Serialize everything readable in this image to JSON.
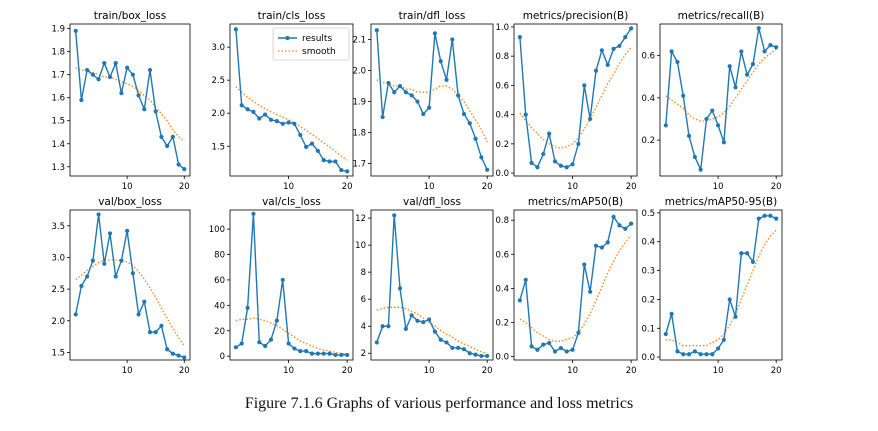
{
  "caption": "Figure 7.1.6 Graphs of various performance and loss metrics",
  "colors": {
    "results": "#1f77b4",
    "smooth": "#ff7f0e",
    "axis": "#000000",
    "background": "#ffffff"
  },
  "legend": {
    "results": "results",
    "smooth": "smooth",
    "placement": "top-right of second panel"
  },
  "chart_data": [
    {
      "type": "line",
      "title": "train/box_loss",
      "xlabel": "",
      "ylabel": "",
      "xlim": [
        0,
        21
      ],
      "ylim": [
        1.26,
        1.92
      ],
      "xticks": [
        10,
        20
      ],
      "yticks": [
        1.3,
        1.4,
        1.5,
        1.6,
        1.7,
        1.8,
        1.9
      ],
      "ytick_labels": [
        "1.3",
        "1.4",
        "1.5",
        "1.6",
        "1.7",
        "1.8",
        "1.9"
      ],
      "x": [
        1,
        2,
        3,
        4,
        5,
        6,
        7,
        8,
        9,
        10,
        11,
        12,
        13,
        14,
        15,
        16,
        17,
        18,
        19,
        20
      ],
      "series": [
        {
          "name": "results",
          "values": [
            1.89,
            1.59,
            1.72,
            1.7,
            1.68,
            1.75,
            1.69,
            1.75,
            1.62,
            1.73,
            1.7,
            1.61,
            1.55,
            1.72,
            1.54,
            1.43,
            1.39,
            1.43,
            1.31,
            1.29
          ]
        },
        {
          "name": "smooth",
          "values": [
            1.73,
            1.72,
            1.72,
            1.71,
            1.7,
            1.69,
            1.69,
            1.68,
            1.67,
            1.66,
            1.65,
            1.63,
            1.61,
            1.59,
            1.56,
            1.53,
            1.5,
            1.46,
            1.43,
            1.41
          ]
        }
      ],
      "legend": false
    },
    {
      "type": "line",
      "title": "train/cls_loss",
      "xlabel": "",
      "ylabel": "",
      "xlim": [
        0,
        21
      ],
      "ylim": [
        1.05,
        3.35
      ],
      "xticks": [
        10,
        20
      ],
      "yticks": [
        1.5,
        2.0,
        2.5,
        3.0
      ],
      "ytick_labels": [
        "1.5",
        "2.0",
        "2.5",
        "3.0"
      ],
      "x": [
        1,
        2,
        3,
        4,
        5,
        6,
        7,
        8,
        9,
        10,
        11,
        12,
        13,
        14,
        15,
        16,
        17,
        18,
        19,
        20
      ],
      "series": [
        {
          "name": "results",
          "values": [
            3.27,
            2.12,
            2.06,
            2.02,
            1.92,
            1.98,
            1.9,
            1.88,
            1.84,
            1.86,
            1.84,
            1.67,
            1.49,
            1.54,
            1.43,
            1.29,
            1.27,
            1.27,
            1.14,
            1.12
          ]
        },
        {
          "name": "smooth",
          "values": [
            2.4,
            2.32,
            2.24,
            2.18,
            2.12,
            2.07,
            2.02,
            1.98,
            1.94,
            1.9,
            1.85,
            1.8,
            1.74,
            1.68,
            1.62,
            1.55,
            1.49,
            1.42,
            1.35,
            1.29
          ]
        }
      ],
      "legend": true
    },
    {
      "type": "line",
      "title": "train/dfl_loss",
      "xlabel": "",
      "ylabel": "",
      "xlim": [
        0,
        21
      ],
      "ylim": [
        1.66,
        2.15
      ],
      "xticks": [
        10,
        20
      ],
      "yticks": [
        1.7,
        1.8,
        1.9,
        2.0,
        2.1
      ],
      "ytick_labels": [
        "1.7",
        "1.8",
        "1.9",
        "2.0",
        "2.1"
      ],
      "x": [
        1,
        2,
        3,
        4,
        5,
        6,
        7,
        8,
        9,
        10,
        11,
        12,
        13,
        14,
        15,
        16,
        17,
        18,
        19,
        20
      ],
      "series": [
        {
          "name": "results",
          "values": [
            2.13,
            1.85,
            1.96,
            1.93,
            1.95,
            1.93,
            1.92,
            1.9,
            1.86,
            1.88,
            2.12,
            2.03,
            1.97,
            2.1,
            1.92,
            1.86,
            1.83,
            1.78,
            1.72,
            1.68
          ]
        },
        {
          "name": "smooth",
          "values": [
            1.97,
            1.96,
            1.96,
            1.95,
            1.95,
            1.94,
            1.94,
            1.93,
            1.93,
            1.93,
            1.94,
            1.95,
            1.95,
            1.94,
            1.92,
            1.9,
            1.87,
            1.84,
            1.81,
            1.77
          ]
        }
      ],
      "legend": false
    },
    {
      "type": "line",
      "title": "metrics/precision(B)",
      "xlabel": "",
      "ylabel": "",
      "xlim": [
        0,
        21
      ],
      "ylim": [
        -0.02,
        1.02
      ],
      "xticks": [
        10,
        20
      ],
      "yticks": [
        0.0,
        0.2,
        0.4,
        0.6,
        0.8,
        1.0
      ],
      "ytick_labels": [
        "0.0",
        "0.2",
        "0.4",
        "0.6",
        "0.8",
        "1.0"
      ],
      "x": [
        1,
        2,
        3,
        4,
        5,
        6,
        7,
        8,
        9,
        10,
        11,
        12,
        13,
        14,
        15,
        16,
        17,
        18,
        19,
        20
      ],
      "series": [
        {
          "name": "results",
          "values": [
            0.93,
            0.4,
            0.07,
            0.04,
            0.13,
            0.27,
            0.08,
            0.05,
            0.04,
            0.06,
            0.2,
            0.6,
            0.37,
            0.7,
            0.84,
            0.74,
            0.85,
            0.87,
            0.93,
            0.99
          ]
        },
        {
          "name": "smooth",
          "values": [
            0.41,
            0.36,
            0.31,
            0.27,
            0.23,
            0.2,
            0.18,
            0.17,
            0.18,
            0.2,
            0.24,
            0.3,
            0.37,
            0.45,
            0.53,
            0.61,
            0.68,
            0.75,
            0.81,
            0.86
          ]
        }
      ],
      "legend": false
    },
    {
      "type": "line",
      "title": "metrics/recall(B)",
      "xlabel": "",
      "ylabel": "",
      "xlim": [
        0,
        21
      ],
      "ylim": [
        0.03,
        0.75
      ],
      "xticks": [
        10,
        20
      ],
      "yticks": [
        0.2,
        0.4,
        0.6
      ],
      "ytick_labels": [
        "0.2",
        "0.4",
        "0.6"
      ],
      "x": [
        1,
        2,
        3,
        4,
        5,
        6,
        7,
        8,
        9,
        10,
        11,
        12,
        13,
        14,
        15,
        16,
        17,
        18,
        19,
        20
      ],
      "series": [
        {
          "name": "results",
          "values": [
            0.27,
            0.62,
            0.57,
            0.41,
            0.22,
            0.12,
            0.06,
            0.3,
            0.34,
            0.27,
            0.19,
            0.55,
            0.45,
            0.62,
            0.51,
            0.56,
            0.73,
            0.62,
            0.65,
            0.64
          ]
        },
        {
          "name": "smooth",
          "values": [
            0.41,
            0.39,
            0.37,
            0.35,
            0.32,
            0.3,
            0.29,
            0.29,
            0.3,
            0.31,
            0.33,
            0.36,
            0.4,
            0.44,
            0.48,
            0.52,
            0.56,
            0.59,
            0.61,
            0.63
          ]
        }
      ],
      "legend": false
    },
    {
      "type": "line",
      "title": "val/box_loss",
      "xlabel": "",
      "ylabel": "",
      "xlim": [
        0,
        21
      ],
      "ylim": [
        1.38,
        3.75
      ],
      "xticks": [
        10,
        20
      ],
      "yticks": [
        1.5,
        2.0,
        2.5,
        3.0,
        3.5
      ],
      "ytick_labels": [
        "1.5",
        "2.0",
        "2.5",
        "3.0",
        "3.5"
      ],
      "x": [
        1,
        2,
        3,
        4,
        5,
        6,
        7,
        8,
        9,
        10,
        11,
        12,
        13,
        14,
        15,
        16,
        17,
        18,
        19,
        20
      ],
      "series": [
        {
          "name": "results",
          "values": [
            2.1,
            2.55,
            2.7,
            2.95,
            3.68,
            2.9,
            3.38,
            2.7,
            2.95,
            3.42,
            2.75,
            2.1,
            2.3,
            1.82,
            1.82,
            1.92,
            1.55,
            1.48,
            1.45,
            1.42
          ]
        },
        {
          "name": "smooth",
          "values": [
            2.65,
            2.72,
            2.8,
            2.86,
            2.92,
            2.95,
            2.96,
            2.96,
            2.95,
            2.93,
            2.87,
            2.78,
            2.66,
            2.52,
            2.37,
            2.2,
            2.04,
            1.88,
            1.73,
            1.6
          ]
        }
      ],
      "legend": false
    },
    {
      "type": "line",
      "title": "val/cls_loss",
      "xlabel": "",
      "ylabel": "",
      "xlim": [
        0,
        21
      ],
      "ylim": [
        -3,
        115
      ],
      "xticks": [
        10,
        20
      ],
      "yticks": [
        0,
        20,
        40,
        60,
        80,
        100
      ],
      "ytick_labels": [
        "0",
        "20",
        "40",
        "60",
        "80",
        "100"
      ],
      "x": [
        1,
        2,
        3,
        4,
        5,
        6,
        7,
        8,
        9,
        10,
        11,
        12,
        13,
        14,
        15,
        16,
        17,
        18,
        19,
        20
      ],
      "series": [
        {
          "name": "results",
          "values": [
            7,
            10,
            38,
            112,
            11,
            8,
            13,
            28,
            60,
            10,
            6,
            4,
            4,
            2,
            2,
            2,
            2,
            1,
            1,
            1
          ]
        },
        {
          "name": "smooth",
          "values": [
            28,
            29,
            29,
            30,
            29,
            28,
            26,
            24,
            21,
            18,
            15,
            12,
            10,
            8,
            6,
            5,
            4,
            3,
            2,
            2
          ]
        }
      ],
      "legend": false
    },
    {
      "type": "line",
      "title": "val/dfl_loss",
      "xlabel": "",
      "ylabel": "",
      "xlim": [
        0,
        21
      ],
      "ylim": [
        1.5,
        12.6
      ],
      "xticks": [
        10,
        20
      ],
      "yticks": [
        2,
        4,
        6,
        8,
        10,
        12
      ],
      "ytick_labels": [
        "2",
        "4",
        "6",
        "8",
        "10",
        "12"
      ],
      "x": [
        1,
        2,
        3,
        4,
        5,
        6,
        7,
        8,
        9,
        10,
        11,
        12,
        13,
        14,
        15,
        16,
        17,
        18,
        19,
        20
      ],
      "series": [
        {
          "name": "results",
          "values": [
            2.8,
            4.0,
            4.0,
            12.2,
            6.8,
            3.8,
            4.8,
            4.4,
            4.3,
            4.5,
            3.6,
            3.0,
            2.8,
            2.4,
            2.4,
            2.3,
            2.0,
            1.9,
            1.8,
            1.8
          ]
        },
        {
          "name": "smooth",
          "values": [
            5.2,
            5.3,
            5.4,
            5.4,
            5.4,
            5.3,
            5.1,
            4.9,
            4.6,
            4.3,
            4.0,
            3.7,
            3.4,
            3.2,
            2.9,
            2.7,
            2.5,
            2.3,
            2.1,
            2.0
          ]
        }
      ],
      "legend": false
    },
    {
      "type": "line",
      "title": "metrics/mAP50(B)",
      "xlabel": "",
      "ylabel": "",
      "xlim": [
        0,
        21
      ],
      "ylim": [
        -0.02,
        0.86
      ],
      "xticks": [
        10,
        20
      ],
      "yticks": [
        0.0,
        0.2,
        0.4,
        0.6,
        0.8
      ],
      "ytick_labels": [
        "0.0",
        "0.2",
        "0.4",
        "0.6",
        "0.8"
      ],
      "x": [
        1,
        2,
        3,
        4,
        5,
        6,
        7,
        8,
        9,
        10,
        11,
        12,
        13,
        14,
        15,
        16,
        17,
        18,
        19,
        20
      ],
      "series": [
        {
          "name": "results",
          "values": [
            0.33,
            0.45,
            0.06,
            0.04,
            0.07,
            0.08,
            0.03,
            0.05,
            0.03,
            0.04,
            0.14,
            0.54,
            0.38,
            0.65,
            0.64,
            0.67,
            0.82,
            0.77,
            0.75,
            0.78
          ]
        },
        {
          "name": "smooth",
          "values": [
            0.22,
            0.2,
            0.17,
            0.14,
            0.12,
            0.1,
            0.09,
            0.09,
            0.1,
            0.11,
            0.14,
            0.19,
            0.25,
            0.33,
            0.41,
            0.49,
            0.56,
            0.62,
            0.67,
            0.71
          ]
        }
      ],
      "legend": false
    },
    {
      "type": "line",
      "title": "metrics/mAP50-95(B)",
      "xlabel": "",
      "ylabel": "",
      "xlim": [
        0,
        21
      ],
      "ylim": [
        -0.01,
        0.51
      ],
      "xticks": [
        10,
        20
      ],
      "yticks": [
        0.0,
        0.1,
        0.2,
        0.3,
        0.4,
        0.5
      ],
      "ytick_labels": [
        "0.0",
        "0.1",
        "0.2",
        "0.3",
        "0.4",
        "0.5"
      ],
      "x": [
        1,
        2,
        3,
        4,
        5,
        6,
        7,
        8,
        9,
        10,
        11,
        12,
        13,
        14,
        15,
        16,
        17,
        18,
        19,
        20
      ],
      "series": [
        {
          "name": "results",
          "values": [
            0.08,
            0.15,
            0.02,
            0.01,
            0.01,
            0.02,
            0.01,
            0.01,
            0.01,
            0.03,
            0.06,
            0.2,
            0.14,
            0.36,
            0.36,
            0.33,
            0.48,
            0.49,
            0.49,
            0.48
          ]
        },
        {
          "name": "smooth",
          "values": [
            0.06,
            0.06,
            0.05,
            0.04,
            0.04,
            0.04,
            0.04,
            0.04,
            0.05,
            0.06,
            0.08,
            0.11,
            0.15,
            0.2,
            0.25,
            0.3,
            0.35,
            0.39,
            0.42,
            0.44
          ]
        }
      ],
      "legend": false
    }
  ]
}
